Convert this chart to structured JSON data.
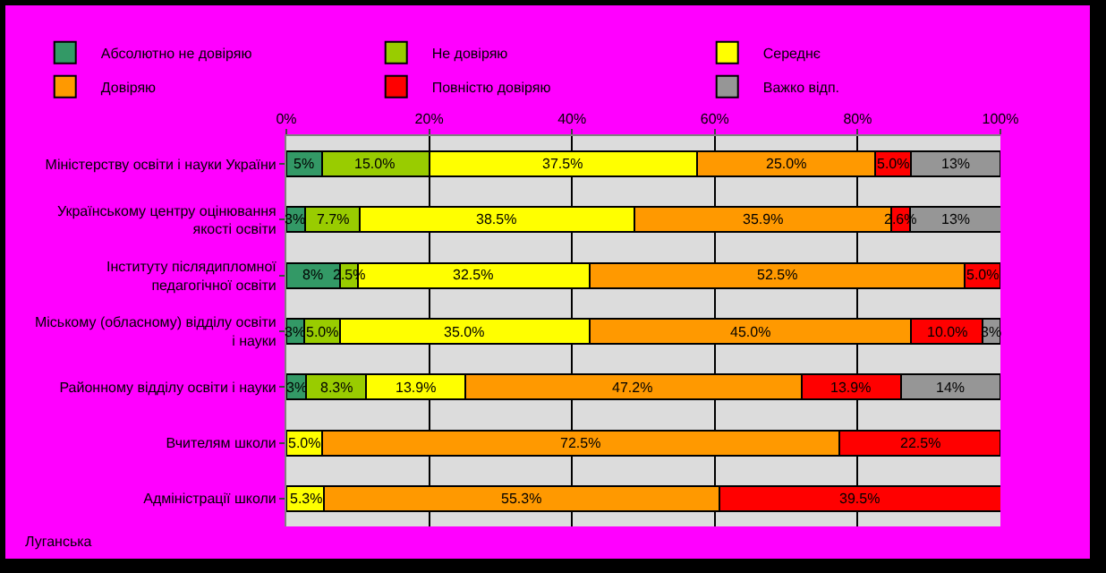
{
  "chart_data": {
    "type": "bar",
    "orientation": "horizontal",
    "stacked": true,
    "categories": [
      "Міністерству освіти і науки України",
      "Українському центру оцінювання якості освіти",
      "Інституту післядипломної педагогічної освіти",
      "Міському (обласному) відділу освіти і науки",
      "Районному відділу освіти і науки",
      "Вчителям школи",
      "Адміністрації школи"
    ],
    "series": [
      {
        "name": "Абсолютно не довіряю",
        "color": "#339966",
        "values": [
          5.0,
          2.6,
          7.5,
          2.5,
          2.8,
          null,
          null
        ],
        "value_labels": [
          "5%",
          "3%",
          "8%",
          "3%",
          "3%",
          null,
          null
        ]
      },
      {
        "name": "Не довіряю",
        "color": "#99cc00",
        "values": [
          15.0,
          7.7,
          2.5,
          5.0,
          8.3,
          null,
          null
        ],
        "value_labels": [
          "15.0%",
          "7.7%",
          "2.5%",
          "5.0%",
          "8.3%",
          null,
          null
        ]
      },
      {
        "name": "Середнє",
        "color": "#ffff00",
        "values": [
          37.5,
          38.5,
          32.5,
          35.0,
          13.9,
          5.0,
          5.3
        ],
        "value_labels": [
          "37.5%",
          "38.5%",
          "32.5%",
          "35.0%",
          "13.9%",
          "5.0%",
          "5.3%"
        ]
      },
      {
        "name": "Довіряю",
        "color": "#ff9900",
        "values": [
          25.0,
          35.9,
          52.5,
          45.0,
          47.2,
          72.5,
          55.3
        ],
        "value_labels": [
          "25.0%",
          "35.9%",
          "52.5%",
          "45.0%",
          "47.2%",
          "72.5%",
          "55.3%"
        ]
      },
      {
        "name": "Повністю довіряю",
        "color": "#ff0000",
        "values": [
          5.0,
          2.6,
          5.0,
          10.0,
          13.9,
          22.5,
          39.5
        ],
        "value_labels": [
          "5.0%",
          "2.6%",
          "5.0%",
          "10.0%",
          "13.9%",
          "22.5%",
          "39.5%"
        ]
      },
      {
        "name": "Важко відп.",
        "color": "#969696",
        "values": [
          12.5,
          12.8,
          null,
          2.5,
          13.9,
          null,
          null
        ],
        "value_labels": [
          "13%",
          "13%",
          null,
          "3%",
          "14%",
          null,
          null
        ]
      }
    ],
    "xlim": [
      0,
      100
    ],
    "xticks": [
      {
        "value": 0,
        "label": "0%"
      },
      {
        "value": 20,
        "label": "20%"
      },
      {
        "value": 40,
        "label": "40%"
      },
      {
        "value": 60,
        "label": "60%"
      },
      {
        "value": 80,
        "label": "80%"
      },
      {
        "value": 100,
        "label": "100%"
      }
    ],
    "grid": "x",
    "legend": "top left",
    "annotations": [
      "Луганська"
    ]
  }
}
